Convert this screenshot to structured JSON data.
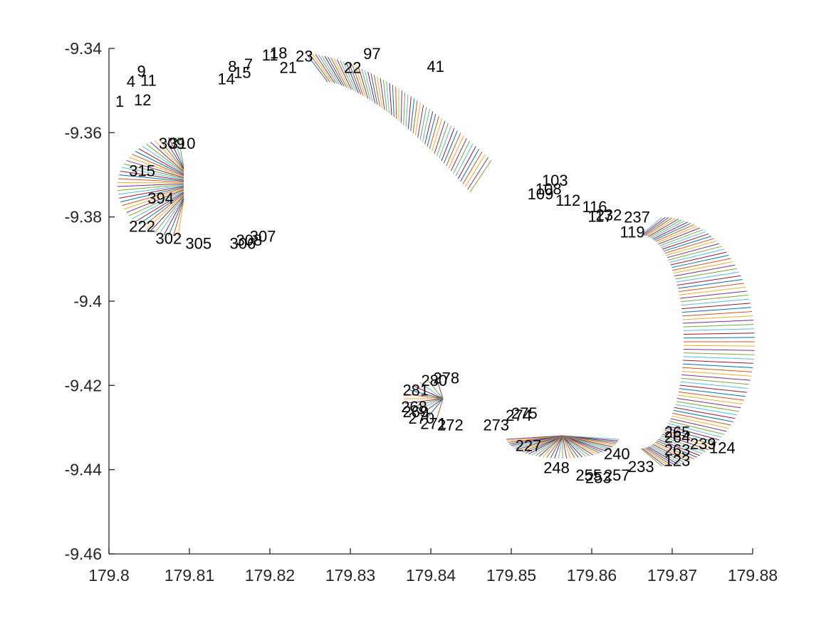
{
  "chart_data": {
    "type": "line",
    "title": "",
    "xlabel": "",
    "ylabel": "",
    "xlim": [
      179.8,
      179.88
    ],
    "ylim": [
      -9.46,
      -9.34
    ],
    "x_ticks": [
      "179.8",
      "179.81",
      "179.82",
      "179.83",
      "179.84",
      "179.85",
      "179.86",
      "179.87",
      "179.88"
    ],
    "y_ticks": [
      "-9.34",
      "-9.36",
      "-9.38",
      "-9.4",
      "-9.42",
      "-9.44",
      "-9.46"
    ],
    "grid": false,
    "legend": "none",
    "description_of_marks": "Each numbered node is drawn as a text label at its position; a short coloured segment connects each node to a nearby position (default colour cycle).",
    "series_colors": [
      "#0072BD",
      "#D95319",
      "#EDB120",
      "#7E2F8E",
      "#77AC30",
      "#4DBEEE",
      "#A2142F"
    ],
    "points": [
      {
        "label": "1",
        "x": 179.8008,
        "y": -9.3525
      },
      {
        "label": "12",
        "x": 179.8031,
        "y": -9.3522
      },
      {
        "label": "4",
        "x": 179.8022,
        "y": -9.3478
      },
      {
        "label": "11",
        "x": 179.8039,
        "y": -9.3475
      },
      {
        "label": "9",
        "x": 179.8035,
        "y": -9.3453
      },
      {
        "label": "8",
        "x": 179.8148,
        "y": -9.3442
      },
      {
        "label": "14",
        "x": 179.8135,
        "y": -9.3472
      },
      {
        "label": "15",
        "x": 179.8155,
        "y": -9.3457
      },
      {
        "label": "7",
        "x": 179.8168,
        "y": -9.3437
      },
      {
        "label": "11",
        "x": 179.819,
        "y": -9.3415
      },
      {
        "label": "18",
        "x": 179.82,
        "y": -9.341
      },
      {
        "label": "21",
        "x": 179.8212,
        "y": -9.3445
      },
      {
        "label": "23",
        "x": 179.8232,
        "y": -9.3418
      },
      {
        "label": "22",
        "x": 179.8292,
        "y": -9.3445
      },
      {
        "label": "97",
        "x": 179.8316,
        "y": -9.3412
      },
      {
        "label": "41",
        "x": 179.8395,
        "y": -9.3442
      },
      {
        "label": "103",
        "x": 179.8538,
        "y": -9.3713
      },
      {
        "label": "108",
        "x": 179.853,
        "y": -9.3733
      },
      {
        "label": "109",
        "x": 179.852,
        "y": -9.3745
      },
      {
        "label": "112",
        "x": 179.8555,
        "y": -9.376
      },
      {
        "label": "116",
        "x": 179.8588,
        "y": -9.3775
      },
      {
        "label": "117",
        "x": 179.8595,
        "y": -9.3798
      },
      {
        "label": "232",
        "x": 179.8605,
        "y": -9.3795
      },
      {
        "label": "237",
        "x": 179.864,
        "y": -9.38
      },
      {
        "label": "119",
        "x": 179.8635,
        "y": -9.3835
      },
      {
        "label": "124",
        "x": 179.8746,
        "y": -9.4347
      },
      {
        "label": "123",
        "x": 179.869,
        "y": -9.4378
      },
      {
        "label": "239",
        "x": 179.8722,
        "y": -9.4338
      },
      {
        "label": "263",
        "x": 179.869,
        "y": -9.4352
      },
      {
        "label": "264",
        "x": 179.869,
        "y": -9.4322
      },
      {
        "label": "265",
        "x": 179.869,
        "y": -9.431
      },
      {
        "label": "233",
        "x": 179.8645,
        "y": -9.4392
      },
      {
        "label": "240",
        "x": 179.8615,
        "y": -9.4362
      },
      {
        "label": "257",
        "x": 179.8615,
        "y": -9.4412
      },
      {
        "label": "253",
        "x": 179.8592,
        "y": -9.4418
      },
      {
        "label": "255",
        "x": 179.858,
        "y": -9.4412
      },
      {
        "label": "248",
        "x": 179.854,
        "y": -9.4395
      },
      {
        "label": "227",
        "x": 179.8505,
        "y": -9.4342
      },
      {
        "label": "274",
        "x": 179.8493,
        "y": -9.427
      },
      {
        "label": "275",
        "x": 179.85,
        "y": -9.4265
      },
      {
        "label": "273",
        "x": 179.8465,
        "y": -9.4293
      },
      {
        "label": "272",
        "x": 179.8408,
        "y": -9.4293
      },
      {
        "label": "271",
        "x": 179.8387,
        "y": -9.429
      },
      {
        "label": "270",
        "x": 179.8372,
        "y": -9.4277
      },
      {
        "label": "268",
        "x": 179.8363,
        "y": -9.425
      },
      {
        "label": "269",
        "x": 179.8365,
        "y": -9.4262
      },
      {
        "label": "281",
        "x": 179.8365,
        "y": -9.421
      },
      {
        "label": "280",
        "x": 179.8388,
        "y": -9.4188
      },
      {
        "label": "278",
        "x": 179.8403,
        "y": -9.4182
      },
      {
        "label": "309",
        "x": 179.8062,
        "y": -9.3625
      },
      {
        "label": "310",
        "x": 179.8075,
        "y": -9.3625
      },
      {
        "label": "315",
        "x": 179.8025,
        "y": -9.369
      },
      {
        "label": "394",
        "x": 179.8048,
        "y": -9.3755
      },
      {
        "label": "222",
        "x": 179.8025,
        "y": -9.3822
      },
      {
        "label": "302",
        "x": 179.8058,
        "y": -9.385
      },
      {
        "label": "305",
        "x": 179.8095,
        "y": -9.3862
      },
      {
        "label": "306",
        "x": 179.815,
        "y": -9.3862
      },
      {
        "label": "308",
        "x": 179.8158,
        "y": -9.3855
      },
      {
        "label": "307",
        "x": 179.8175,
        "y": -9.3845
      }
    ]
  }
}
